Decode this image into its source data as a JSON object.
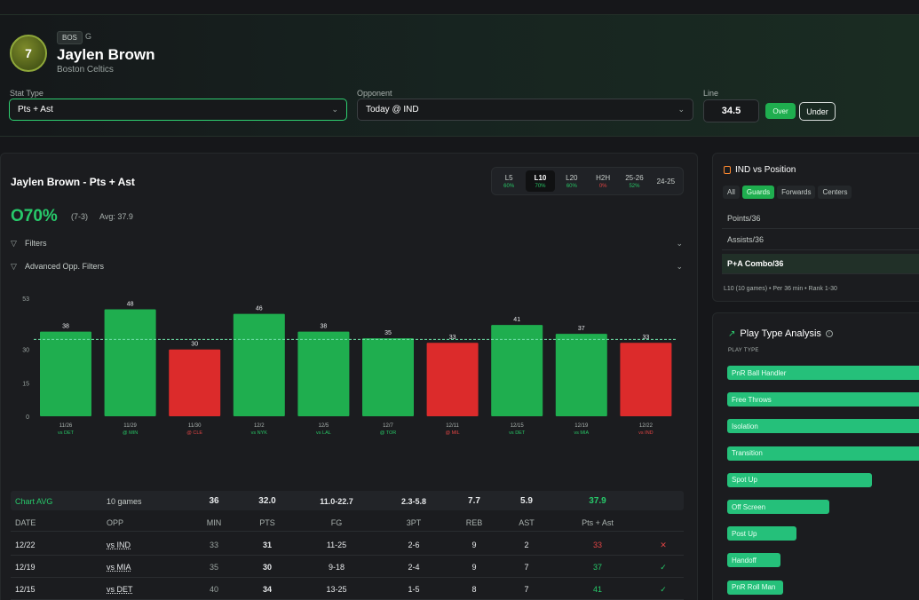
{
  "header": {
    "jersey_number": "7",
    "team_abbr": "BOS",
    "position": "G",
    "player_name": "Jaylen Brown",
    "team_name": "Boston Celtics",
    "stat_type_label": "Stat Type",
    "stat_type_value": "Pts + Ast",
    "opponent_label": "Opponent",
    "opponent_value": "Today @ IND",
    "line_label": "Line",
    "line_value": "34.5",
    "over_label": "Over",
    "under_label": "Under",
    "accent": "#2ecf70"
  },
  "main": {
    "title": "Jaylen Brown - Pts + Ast",
    "period_tabs": [
      {
        "label": "L5",
        "value": "60%",
        "status": "green"
      },
      {
        "label": "L10",
        "value": "70%",
        "status": "green",
        "active": true
      },
      {
        "label": "L20",
        "value": "60%",
        "status": "green"
      },
      {
        "label": "H2H",
        "value": "0%",
        "status": "red"
      },
      {
        "label": "25-26",
        "value": "52%",
        "status": "green"
      },
      {
        "label": "24-25",
        "value": "",
        "status": "green"
      }
    ],
    "hit_rate": "O70%",
    "record": "(7-3)",
    "avg": "Avg: 37.9",
    "filters_label": "Filters",
    "adv_filters_label": "Advanced Opp. Filters"
  },
  "chart_data": {
    "type": "bar",
    "categories": [
      "11/26",
      "11/29",
      "11/30",
      "12/2",
      "12/5",
      "12/7",
      "12/11",
      "12/15",
      "12/19",
      "12/22"
    ],
    "opponents": [
      "vs DET",
      "@ MIN",
      "@ CLE",
      "vs NYK",
      "vs LAL",
      "@ TOR",
      "@ MIL",
      "vs DET",
      "vs MIA",
      "vs IND"
    ],
    "values": [
      38,
      48,
      30,
      46,
      38,
      35,
      33,
      41,
      37,
      33
    ],
    "results": [
      "hit",
      "hit",
      "miss",
      "hit",
      "hit",
      "hit",
      "miss",
      "hit",
      "hit",
      "miss"
    ],
    "line": 34.5,
    "ylim": [
      0,
      53
    ],
    "yticks": [
      0,
      15,
      30,
      53
    ],
    "colors": {
      "hit": "#1fae4f",
      "miss": "#dc2b2b",
      "line": "#6fe0a8"
    }
  },
  "summary": {
    "label": "Chart AVG",
    "games": "10 games",
    "min": "36",
    "pts": "32.0",
    "fg": "11.0-22.7",
    "tpt": "2.3-5.8",
    "reb": "7.7",
    "ast": "5.9",
    "combo": "37.9"
  },
  "table": {
    "headers": [
      "DATE",
      "OPP",
      "MIN",
      "PTS",
      "FG",
      "3PT",
      "REB",
      "AST",
      "Pts + Ast"
    ],
    "rows": [
      {
        "date": "12/22",
        "opp": "vs IND",
        "min": "33",
        "pts": "31",
        "fg": "11-25",
        "tpt": "2-6",
        "reb": "9",
        "ast": "2",
        "combo": "33",
        "result": "miss",
        "mark": "✕"
      },
      {
        "date": "12/19",
        "opp": "vs MIA",
        "min": "35",
        "pts": "30",
        "fg": "9-18",
        "tpt": "2-4",
        "reb": "9",
        "ast": "7",
        "combo": "37",
        "result": "hit",
        "mark": "✓"
      },
      {
        "date": "12/15",
        "opp": "vs DET",
        "min": "40",
        "pts": "34",
        "fg": "13-25",
        "tpt": "1-5",
        "reb": "8",
        "ast": "7",
        "combo": "41",
        "result": "hit",
        "mark": "✓"
      }
    ]
  },
  "position_panel": {
    "title": "IND vs Position",
    "tabs": [
      "All",
      "Guards",
      "Forwards",
      "Centers"
    ],
    "active_tab": "Guards",
    "rows": [
      "Points/36",
      "Assists/36",
      "P+A Combo/36"
    ],
    "active_row": "P+A Combo/36",
    "footer": "L10 (10 games) • Per 36 min • Rank 1-30"
  },
  "play_panel": {
    "title": "Play Type Analysis",
    "subtitle": "PLAY TYPE",
    "items": [
      {
        "label": "PnR Ball Handler",
        "share": 1.0
      },
      {
        "label": "Free Throws",
        "share": 1.0
      },
      {
        "label": "Isolation",
        "share": 1.0
      },
      {
        "label": "Transition",
        "share": 1.0
      },
      {
        "label": "Spot Up",
        "share": 0.65
      },
      {
        "label": "Off Screen",
        "share": 0.46
      },
      {
        "label": "Post Up",
        "share": 0.31
      },
      {
        "label": "Handoff",
        "share": 0.24
      },
      {
        "label": "PnR Roll Man",
        "share": 0.25
      }
    ]
  }
}
